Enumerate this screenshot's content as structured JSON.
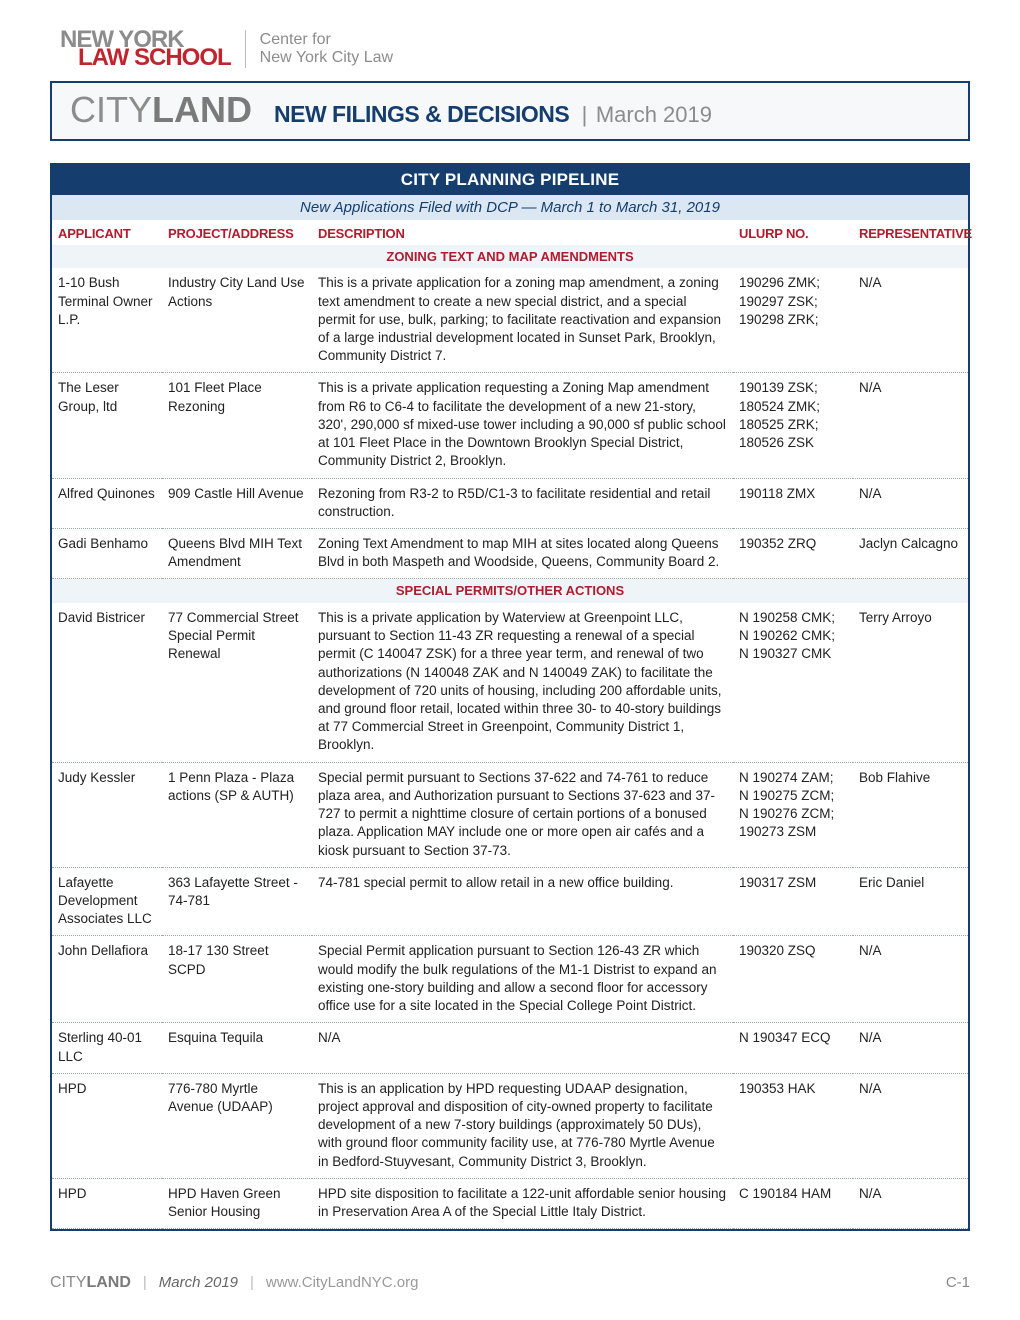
{
  "logo": {
    "line1": "NEW YORK",
    "line2": "LAW SCHOOL",
    "sub1": "Center for",
    "sub2": "New York City Law"
  },
  "titlebar": {
    "brand_thin": "CITY",
    "brand_bold": "LAND",
    "title": "NEW FILINGS & DECISIONS",
    "date": "March 2019"
  },
  "panel": {
    "heading": "CITY PLANNING PIPELINE",
    "subheading": "New Applications Filed with DCP — March 1 to March 31, 2019"
  },
  "columns": {
    "applicant": "APPLICANT",
    "project": "PROJECT/ADDRESS",
    "description": "DESCRIPTION",
    "ulurp": "ULURP NO.",
    "rep": "REPRESENTATIVE"
  },
  "sections": [
    {
      "title": "ZONING TEXT AND MAP AMENDMENTS",
      "rows": [
        {
          "applicant": "1-10 Bush Terminal Owner L.P.",
          "project": "Industry City Land Use Actions",
          "description": "This is a private application for a zoning map amendment, a zoning text amendment to create a new special district, and a special permit for use, bulk, parking; to facilitate reactivation and expansion of a large industrial development located in Sunset Park, Brooklyn, Community District 7.",
          "ulurp": "190296 ZMK; 190297 ZSK; 190298 ZRK;",
          "rep": "N/A"
        },
        {
          "applicant": "The Leser Group, ltd",
          "project": "101 Fleet Place Rezoning",
          "description": "This is a private application requesting a Zoning Map amendment from R6 to C6-4 to facilitate the development of a new 21-story, 320', 290,000 sf mixed-use tower including a 90,000 sf public school at 101 Fleet Place in the Downtown Brooklyn Special District, Community District 2, Brooklyn.",
          "ulurp": "190139 ZSK; 180524 ZMK; 180525 ZRK; 180526 ZSK",
          "rep": "N/A"
        },
        {
          "applicant": "Alfred Quinones",
          "project": "909 Castle Hill Avenue",
          "description": "Rezoning from R3-2 to R5D/C1-3 to facilitate residential and retail construction.",
          "ulurp": "190118 ZMX",
          "rep": "N/A"
        },
        {
          "applicant": "Gadi Benhamo",
          "project": "Queens Blvd MIH Text Amendment",
          "description": "Zoning Text Amendment to map MIH at sites located along Queens Blvd in both Maspeth and Woodside, Queens, Community Board 2.",
          "ulurp": "190352 ZRQ",
          "rep": "Jaclyn Calcagno"
        }
      ]
    },
    {
      "title": "SPECIAL PERMITS/OTHER ACTIONS",
      "rows": [
        {
          "applicant": "David Bistricer",
          "project": "77 Commercial Street Special Permit Renewal",
          "description": "This is a private application by Waterview at Greenpoint LLC, pursuant to Section 11-43 ZR requesting a renewal of a special permit (C 140047 ZSK) for a three year term, and renewal of two authorizations (N 140048 ZAK and N 140049 ZAK) to facilitate the development of 720 units of housing, including 200 affordable units, and ground floor retail, located within three 30- to 40-story buildings at 77 Commercial Street in Greenpoint, Community District 1, Brooklyn.",
          "ulurp": "N 190258 CMK; N 190262 CMK; N 190327 CMK",
          "rep": "Terry Arroyo"
        },
        {
          "applicant": "Judy Kessler",
          "project": "1 Penn Plaza - Plaza actions (SP & AUTH)",
          "description": "Special permit pursuant to Sections 37-622 and 74-761 to reduce plaza area, and Authorization pursuant to Sections 37-623 and 37-727 to permit a nighttime closure of certain portions of a bonused plaza. Application MAY include one or more open air cafés and a kiosk pursuant to Section 37-73.",
          "ulurp": "N 190274 ZAM; N 190275 ZCM; N 190276 ZCM; 190273 ZSM",
          "rep": "Bob Flahive"
        },
        {
          "applicant": "Lafayette Development Associates LLC",
          "project": "363 Lafayette Street - 74-781",
          "description": "74-781 special permit to allow retail in a new office building.",
          "ulurp": "190317 ZSM",
          "rep": "Eric Daniel"
        },
        {
          "applicant": "John Dellafiora",
          "project": "18-17 130 Street SCPD",
          "description": "Special Permit application pursuant to Section 126-43 ZR which would modify the bulk regulations of the M1-1 Distrist to expand an existing one-story building and allow a second floor for accessory office use for a site located in the Special College Point District.",
          "ulurp": "190320 ZSQ",
          "rep": "N/A"
        },
        {
          "applicant": "Sterling 40-01 LLC",
          "project": "Esquina Tequila",
          "description": "N/A",
          "ulurp": "N 190347 ECQ",
          "rep": "N/A"
        },
        {
          "applicant": "HPD",
          "project": "776-780 Myrtle Avenue (UDAAP)",
          "description": "This is an application by HPD requesting UDAAP designation, project approval and disposition of city-owned property to facilitate development of a new 7-story buildings (approximately 50 DUs), with ground floor community facility use, at 776-780 Myrtle Avenue in Bedford-Stuyvesant, Community District 3, Brooklyn.",
          "ulurp": "190353 HAK",
          "rep": "N/A"
        },
        {
          "applicant": "HPD",
          "project": "HPD Haven Green Senior Housing",
          "description": "HPD site disposition to facilitate a 122-unit affordable senior housing in Preservation Area A of the Special Little Italy District.",
          "ulurp": "C 190184 HAM",
          "rep": "N/A"
        }
      ]
    }
  ],
  "footer": {
    "brand_thin": "CITY",
    "brand_bold": "LAND",
    "date": "March 2019",
    "url": "www.CityLandNYC.org",
    "page": "C-1"
  },
  "colors": {
    "navy": "#153d6e",
    "red": "#b01c2e",
    "gray": "#8c8c8c",
    "lightblue": "#dbe8f4",
    "section_bg": "#eff4f9"
  }
}
